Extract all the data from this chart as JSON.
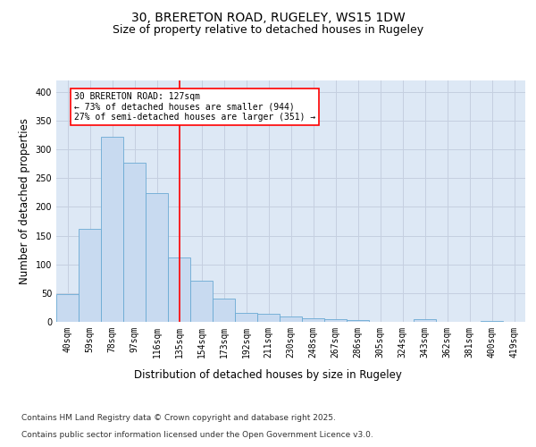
{
  "title_line1": "30, BRERETON ROAD, RUGELEY, WS15 1DW",
  "title_line2": "Size of property relative to detached houses in Rugeley",
  "xlabel": "Distribution of detached houses by size in Rugeley",
  "ylabel": "Number of detached properties",
  "categories": [
    "40sqm",
    "59sqm",
    "78sqm",
    "97sqm",
    "116sqm",
    "135sqm",
    "154sqm",
    "173sqm",
    "192sqm",
    "211sqm",
    "230sqm",
    "248sqm",
    "267sqm",
    "286sqm",
    "305sqm",
    "324sqm",
    "343sqm",
    "362sqm",
    "381sqm",
    "400sqm",
    "419sqm"
  ],
  "values": [
    48,
    162,
    322,
    277,
    224,
    112,
    72,
    40,
    16,
    14,
    9,
    7,
    4,
    3,
    0,
    0,
    4,
    0,
    0,
    2,
    0
  ],
  "bar_color": "#c8daf0",
  "bar_edge_color": "#6aaad4",
  "grid_color": "#c5cfe0",
  "background_color": "#dde8f5",
  "vline_x": 5,
  "vline_color": "red",
  "annotation_text": "30 BRERETON ROAD: 127sqm\n← 73% of detached houses are smaller (944)\n27% of semi-detached houses are larger (351) →",
  "annotation_box_color": "white",
  "annotation_box_edge_color": "red",
  "ylim": [
    0,
    420
  ],
  "yticks": [
    0,
    50,
    100,
    150,
    200,
    250,
    300,
    350,
    400
  ],
  "footer_line1": "Contains HM Land Registry data © Crown copyright and database right 2025.",
  "footer_line2": "Contains public sector information licensed under the Open Government Licence v3.0.",
  "title_fontsize": 10,
  "subtitle_fontsize": 9,
  "axis_label_fontsize": 8.5,
  "tick_fontsize": 7,
  "footer_fontsize": 6.5,
  "annotation_fontsize": 7
}
